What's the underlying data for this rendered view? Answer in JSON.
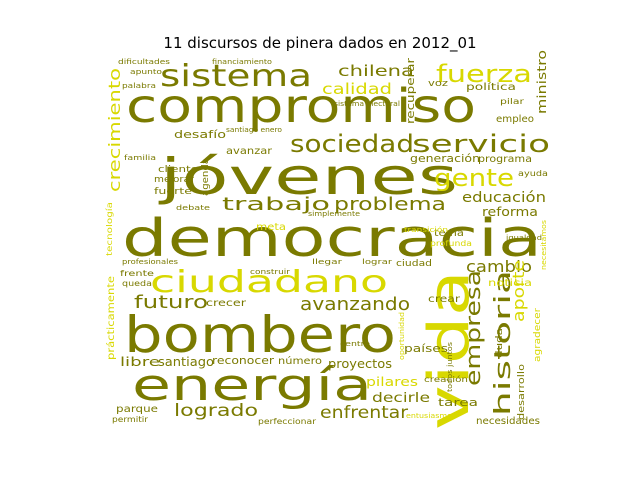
{
  "chart_data": {
    "type": "wordcloud",
    "title": "11 discursos de pinera dados en 2012_01",
    "colors": {
      "dark": "#7a7a00",
      "mid": "#a5a500",
      "light": "#d8d800",
      "background": "#ffffff"
    },
    "words": [
      {
        "text": "compromiso",
        "weight": 100,
        "shade": "dark"
      },
      {
        "text": "jóvenes",
        "weight": 92,
        "shade": "dark"
      },
      {
        "text": "democracia",
        "weight": 96,
        "shade": "dark"
      },
      {
        "text": "bombero",
        "weight": 88,
        "shade": "dark"
      },
      {
        "text": "energía",
        "weight": 80,
        "shade": "dark"
      },
      {
        "text": "vida",
        "weight": 78,
        "shade": "light"
      },
      {
        "text": "ciudadano",
        "weight": 60,
        "shade": "light"
      },
      {
        "text": "sistema",
        "weight": 52,
        "shade": "dark"
      },
      {
        "text": "fuerza",
        "weight": 40,
        "shade": "light"
      },
      {
        "text": "servicio",
        "weight": 38,
        "shade": "dark"
      },
      {
        "text": "sociedad",
        "weight": 36,
        "shade": "dark"
      },
      {
        "text": "gente",
        "weight": 34,
        "shade": "light"
      },
      {
        "text": "historia",
        "weight": 30,
        "shade": "dark"
      },
      {
        "text": "empresa",
        "weight": 28,
        "shade": "dark"
      },
      {
        "text": "crecimiento",
        "weight": 27,
        "shade": "light"
      },
      {
        "text": "avanzando",
        "weight": 26,
        "shade": "dark"
      },
      {
        "text": "problema",
        "weight": 24,
        "shade": "dark"
      },
      {
        "text": "trabajo",
        "weight": 24,
        "shade": "dark"
      },
      {
        "text": "futuro",
        "weight": 22,
        "shade": "dark"
      },
      {
        "text": "logrado",
        "weight": 22,
        "shade": "dark"
      },
      {
        "text": "enfrentar",
        "weight": 22,
        "shade": "dark"
      },
      {
        "text": "cambio",
        "weight": 20,
        "shade": "dark"
      },
      {
        "text": "aporte",
        "weight": 20,
        "shade": "light"
      },
      {
        "text": "chilena",
        "weight": 20,
        "shade": "dark"
      },
      {
        "text": "calidad",
        "weight": 19,
        "shade": "light"
      },
      {
        "text": "educación",
        "weight": 17,
        "shade": "dark"
      },
      {
        "text": "reforma",
        "weight": 15,
        "shade": "dark"
      },
      {
        "text": "libre",
        "weight": 15,
        "shade": "dark"
      },
      {
        "text": "santiago",
        "weight": 15,
        "shade": "dark"
      },
      {
        "text": "decirle",
        "weight": 15,
        "shade": "dark"
      },
      {
        "text": "proyectos",
        "weight": 14,
        "shade": "dark"
      },
      {
        "text": "pilares",
        "weight": 14,
        "shade": "light"
      },
      {
        "text": "tarea",
        "weight": 13,
        "shade": "dark"
      },
      {
        "text": "ministro",
        "weight": 14,
        "shade": "dark"
      },
      {
        "text": "recuperar",
        "weight": 13,
        "shade": "dark"
      },
      {
        "text": "desafío",
        "weight": 13,
        "shade": "dark"
      },
      {
        "text": "generación",
        "weight": 12,
        "shade": "dark"
      },
      {
        "text": "programa",
        "weight": 11,
        "shade": "dark"
      },
      {
        "text": "reconocer",
        "weight": 12,
        "shade": "dark"
      },
      {
        "text": "número",
        "weight": 11,
        "shade": "dark"
      },
      {
        "text": "países",
        "weight": 12,
        "shade": "dark"
      },
      {
        "text": "necesidades",
        "weight": 11,
        "shade": "dark"
      },
      {
        "text": "política",
        "weight": 11,
        "shade": "dark"
      },
      {
        "text": "empleo",
        "weight": 11,
        "shade": "dark"
      },
      {
        "text": "avanzar",
        "weight": 11,
        "shade": "dark"
      },
      {
        "text": "meta",
        "weight": 11,
        "shade": "light"
      },
      {
        "text": "noticia",
        "weight": 11,
        "shade": "light"
      },
      {
        "text": "crecer",
        "weight": 11,
        "shade": "dark"
      },
      {
        "text": "crear",
        "weight": 11,
        "shade": "dark"
      },
      {
        "text": "tema",
        "weight": 10,
        "shade": "dark"
      },
      {
        "text": "duda",
        "weight": 10,
        "shade": "dark"
      },
      {
        "text": "parque",
        "weight": 10,
        "shade": "dark"
      },
      {
        "text": "prácticamente",
        "weight": 10,
        "shade": "light"
      },
      {
        "text": "agradecer",
        "weight": 10,
        "shade": "light"
      },
      {
        "text": "desarrollo",
        "weight": 10,
        "shade": "dark"
      },
      {
        "text": "voz",
        "weight": 10,
        "shade": "dark"
      },
      {
        "text": "fuerte",
        "weight": 10,
        "shade": "dark"
      },
      {
        "text": "cliente",
        "weight": 9,
        "shade": "dark"
      },
      {
        "text": "mejorar",
        "weight": 9,
        "shade": "dark"
      },
      {
        "text": "agenda",
        "weight": 9,
        "shade": "dark"
      },
      {
        "text": "ciudad",
        "weight": 9,
        "shade": "dark"
      },
      {
        "text": "perfeccionar",
        "weight": 9,
        "shade": "dark"
      },
      {
        "text": "creación",
        "weight": 9,
        "shade": "dark"
      },
      {
        "text": "tecnología",
        "weight": 9,
        "shade": "light"
      },
      {
        "text": "frente",
        "weight": 9,
        "shade": "dark"
      },
      {
        "text": "queda",
        "weight": 9,
        "shade": "dark"
      },
      {
        "text": "permitir",
        "weight": 9,
        "shade": "dark"
      },
      {
        "text": "pilar",
        "weight": 8,
        "shade": "dark"
      },
      {
        "text": "profunda",
        "weight": 8,
        "shade": "light"
      },
      {
        "text": "ayuda",
        "weight": 8,
        "shade": "dark"
      },
      {
        "text": "simplemente",
        "weight": 8,
        "shade": "dark"
      },
      {
        "text": "debate",
        "weight": 8,
        "shade": "dark"
      },
      {
        "text": "lograr",
        "weight": 8,
        "shade": "dark"
      },
      {
        "text": "llegar",
        "weight": 8,
        "shade": "dark"
      },
      {
        "text": "profesionales",
        "weight": 8,
        "shade": "dark"
      },
      {
        "text": "centro",
        "weight": 8,
        "shade": "dark"
      },
      {
        "text": "dificultades",
        "weight": 8,
        "shade": "dark"
      },
      {
        "text": "apunto",
        "weight": 8,
        "shade": "dark"
      },
      {
        "text": "financiamiento",
        "weight": 8,
        "shade": "dark"
      },
      {
        "text": "familia",
        "weight": 8,
        "shade": "dark"
      },
      {
        "text": "palabra",
        "weight": 8,
        "shade": "dark"
      },
      {
        "text": "entusiasmo",
        "weight": 8,
        "shade": "light"
      },
      {
        "text": "sistema electoral",
        "weight": 7,
        "shade": "dark"
      },
      {
        "text": "santiago enero",
        "weight": 7,
        "shade": "dark"
      },
      {
        "text": "transición",
        "weight": 7,
        "shade": "light"
      },
      {
        "text": "todos juntos",
        "weight": 7,
        "shade": "dark"
      },
      {
        "text": "necesitamos",
        "weight": 7,
        "shade": "light"
      },
      {
        "text": "construir",
        "weight": 7,
        "shade": "dark"
      },
      {
        "text": "oportunidad",
        "weight": 7,
        "shade": "light"
      },
      {
        "text": "igualdad",
        "weight": 7,
        "shade": "dark"
      }
    ]
  }
}
